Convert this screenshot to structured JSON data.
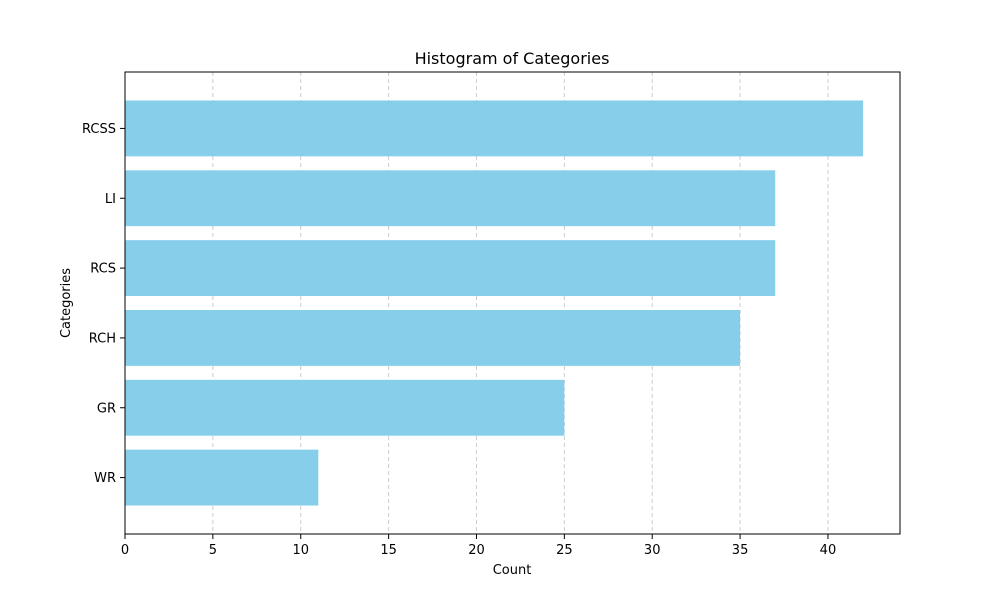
{
  "chart_data": {
    "type": "bar",
    "orientation": "horizontal",
    "title": "Histogram of Categories",
    "xlabel": "Count",
    "ylabel": "Categories",
    "categories": [
      "WR",
      "GR",
      "RCH",
      "RCS",
      "LI",
      "RCSS"
    ],
    "values": [
      11,
      25,
      35,
      37,
      37,
      42
    ],
    "xlim": [
      0,
      44.1
    ],
    "xticks": [
      "0",
      "5",
      "10",
      "15",
      "20",
      "25",
      "30",
      "35",
      "40"
    ],
    "grid": "x",
    "bar_color": "#87CEEB",
    "grid_color": "#cccccc"
  }
}
